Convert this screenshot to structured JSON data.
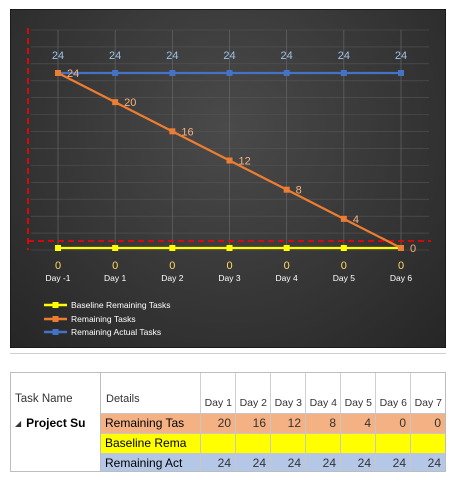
{
  "chart_data": {
    "type": "line",
    "categories": [
      "Day -1",
      "Day 1",
      "Day 2",
      "Day 3",
      "Day 4",
      "Day 5",
      "Day 6"
    ],
    "ylim": [
      0,
      24
    ],
    "grid": true,
    "legend_position": "bottom-left",
    "series": [
      {
        "name": "Baseline Remaining Tasks",
        "color": "#ffff00",
        "values": [
          0,
          0,
          0,
          0,
          0,
          0,
          0
        ]
      },
      {
        "name": "Remaining Tasks",
        "color": "#ed7d31",
        "values": [
          24,
          20,
          16,
          12,
          8,
          4,
          0
        ]
      },
      {
        "name": "Remaining Actual Tasks",
        "color": "#4472c4",
        "values": [
          24,
          24,
          24,
          24,
          24,
          24,
          24
        ]
      }
    ],
    "reference_lines_color": "#ff0000"
  },
  "usage": {
    "task_header": "Task Name",
    "task_name": "Project Su",
    "details_header": "Details",
    "days": [
      "Day 1",
      "Day 2",
      "Day 3",
      "Day 4",
      "Day 5",
      "Day 6",
      "Day 7"
    ],
    "rows": [
      {
        "label": "Remaining Tas",
        "bg": "#f4b183",
        "values": [
          "20",
          "16",
          "12",
          "8",
          "4",
          "0",
          "0"
        ]
      },
      {
        "label": "Baseline Rema",
        "bg": "#ffff00",
        "values": [
          "",
          "",
          "",
          "",
          "",
          "",
          ""
        ]
      },
      {
        "label": "Remaining Act",
        "bg": "#b4c7e7",
        "values": [
          "24",
          "24",
          "24",
          "24",
          "24",
          "24",
          "24"
        ]
      }
    ]
  }
}
